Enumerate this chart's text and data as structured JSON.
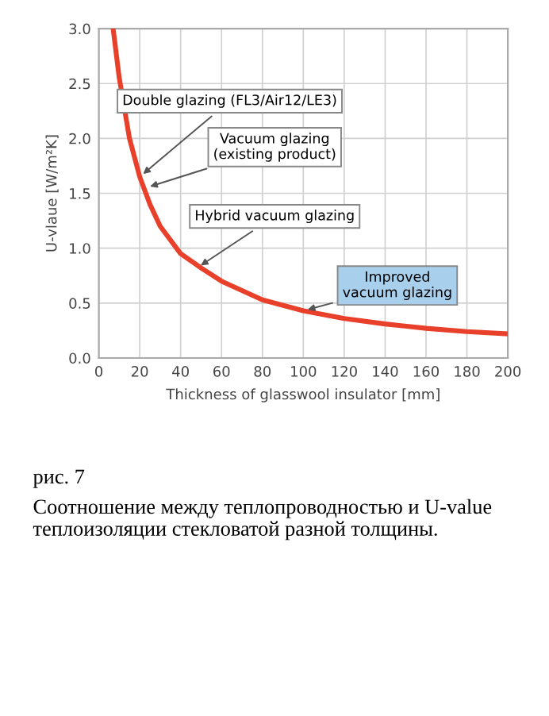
{
  "chart_data": {
    "type": "line",
    "xlabel": "Thickness of glasswool insulator [mm]",
    "ylabel": "U-vlaue [W/m²K]",
    "x": [
      7,
      10,
      15,
      20,
      25,
      30,
      40,
      50,
      60,
      80,
      100,
      120,
      140,
      160,
      180,
      200
    ],
    "series": [
      {
        "color": "#e8402a",
        "values": [
          3.0,
          2.55,
          2.0,
          1.65,
          1.4,
          1.2,
          0.95,
          0.82,
          0.7,
          0.53,
          0.43,
          0.36,
          0.31,
          0.27,
          0.24,
          0.22
        ]
      }
    ],
    "xlim": [
      0,
      200
    ],
    "ylim": [
      0,
      3.0
    ],
    "xticks": [
      0,
      20,
      40,
      60,
      80,
      100,
      120,
      140,
      160,
      180,
      200
    ],
    "yticks": [
      {
        "value": 0,
        "label": "0.0"
      },
      0.5,
      {
        "value": 1,
        "label": "1.0"
      },
      1.5,
      {
        "value": 2,
        "label": "2.0"
      },
      2.5,
      {
        "value": 3,
        "label": "3.0"
      }
    ],
    "grid": true,
    "marker": "none",
    "line_style": "solid",
    "annotations": [
      {
        "text": "Double glazing (FL3/Air12/LE3)",
        "x": 20,
        "y": 1.65
      },
      {
        "text": "Vacuum glazing\n(existing product)",
        "x": 23,
        "y": 1.55
      },
      {
        "text": "Hybrid vacuum glazing",
        "x": 48,
        "y": 0.82
      },
      {
        "text": "Improved\nvacuum glazing",
        "x": 100,
        "y": 0.43
      },
      "рис. 7",
      "Соотношение между теплопроводностью и U-value теплоизоляции стекловатой разной толщины."
    ]
  }
}
